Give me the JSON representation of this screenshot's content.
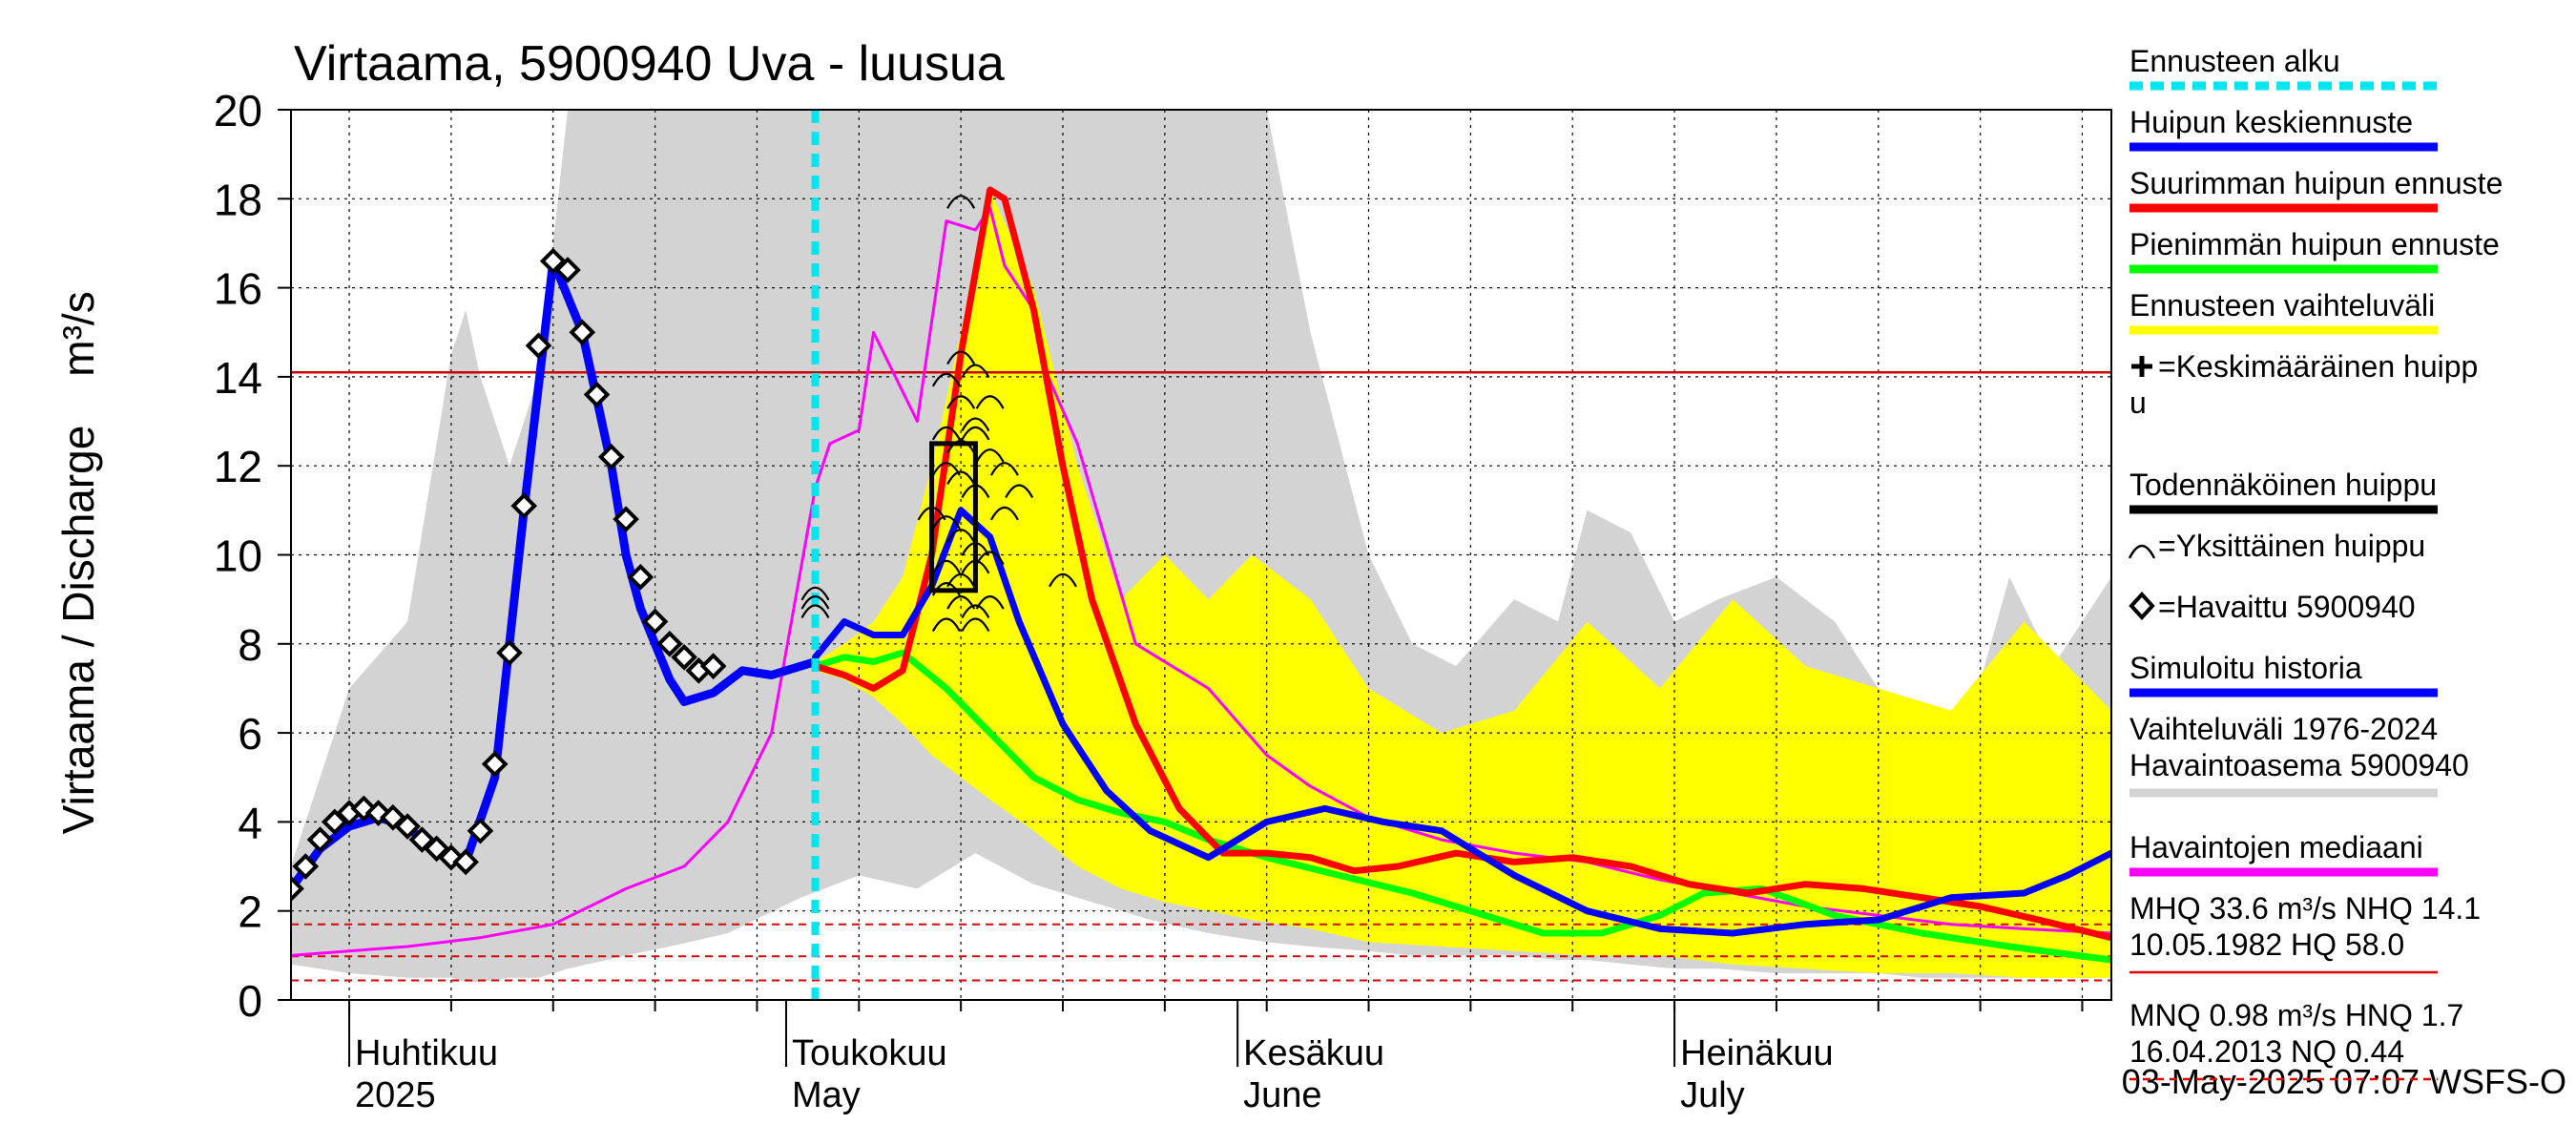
{
  "chart_data": {
    "type": "line",
    "title": "Virtaama, 5900940 Uva - luusua",
    "ylabel": "Virtaama / Discharge",
    "yunit": "m³/s",
    "ylim": [
      0,
      20
    ],
    "yticks": [
      0,
      2,
      4,
      6,
      8,
      10,
      12,
      14,
      16,
      18,
      20
    ],
    "xlim": [
      "2025-03-28",
      "2025-07-31"
    ],
    "grid": true,
    "forecast_start": "2025-05-03",
    "month_labels": [
      {
        "date": "2025-04-01",
        "fi": "Huhtikuu",
        "en": "2025"
      },
      {
        "date": "2025-05-01",
        "fi": "Toukokuu",
        "en": "May"
      },
      {
        "date": "2025-06-01",
        "fi": "Kesäkuu",
        "en": "June"
      },
      {
        "date": "2025-07-01",
        "fi": "Heinäkuu",
        "en": "July"
      }
    ],
    "timestamp": "03-May-2025 07:07 WSFS-O",
    "reference_lines": [
      {
        "value": 14.1,
        "color": "#cc0000",
        "style": "solid"
      },
      {
        "value": 1.7,
        "color": "#dd0000",
        "style": "dashed"
      },
      {
        "value": 0.98,
        "color": "#dd0000",
        "style": "dashed"
      },
      {
        "value": 0.44,
        "color": "#dd0000",
        "style": "dashed"
      }
    ],
    "hist_range": {
      "name": "Vaihteluväli 1976-2024 Havaintoasema 5900940",
      "color": "#d3d3d3",
      "x": [
        "2025-03-28",
        "2025-04-01",
        "2025-04-05",
        "2025-04-08",
        "2025-04-09",
        "2025-04-10",
        "2025-04-12",
        "2025-04-14",
        "2025-04-16",
        "2025-04-20",
        "2025-04-23",
        "2025-04-27",
        "2025-05-02",
        "2025-05-06",
        "2025-05-10",
        "2025-05-14",
        "2025-05-18",
        "2025-05-22",
        "2025-05-26",
        "2025-05-30",
        "2025-06-03",
        "2025-06-06",
        "2025-06-10",
        "2025-06-13",
        "2025-06-16",
        "2025-06-20",
        "2025-06-23",
        "2025-06-25",
        "2025-06-28",
        "2025-07-01",
        "2025-07-04",
        "2025-07-08",
        "2025-07-12",
        "2025-07-15",
        "2025-07-18",
        "2025-07-21",
        "2025-07-24",
        "2025-07-27",
        "2025-07-31"
      ],
      "upper": [
        3.0,
        7.0,
        8.5,
        14.5,
        15.5,
        14.0,
        12.0,
        14.0,
        20.0,
        20.0,
        20.0,
        20.0,
        20.0,
        20.0,
        20.0,
        20.0,
        20.0,
        20.0,
        20.0,
        20.0,
        20.0,
        15.0,
        10.0,
        8.0,
        7.5,
        9.0,
        8.5,
        11.0,
        10.5,
        8.5,
        9.0,
        9.5,
        8.5,
        7.0,
        6.5,
        6.0,
        9.5,
        7.5,
        9.5
      ],
      "lower": [
        0.8,
        0.6,
        0.5,
        0.5,
        0.4,
        0.4,
        0.5,
        0.5,
        0.7,
        1.0,
        1.2,
        1.5,
        2.3,
        2.8,
        2.5,
        3.3,
        2.6,
        2.2,
        1.8,
        1.5,
        1.3,
        1.2,
        1.1,
        1.0,
        1.0,
        1.0,
        0.9,
        0.9,
        0.8,
        0.7,
        0.7,
        0.6,
        0.6,
        0.6,
        0.5,
        0.5,
        0.5,
        0.5,
        0.5
      ]
    },
    "forecast_range": {
      "name": "Ennusteen vaihteluväli",
      "color": "#ffff00",
      "x": [
        "2025-05-03",
        "2025-05-05",
        "2025-05-07",
        "2025-05-09",
        "2025-05-11",
        "2025-05-13",
        "2025-05-15",
        "2025-05-18",
        "2025-05-21",
        "2025-05-24",
        "2025-05-27",
        "2025-05-30",
        "2025-06-02",
        "2025-06-06",
        "2025-06-10",
        "2025-06-15",
        "2025-06-20",
        "2025-06-25",
        "2025-06-30",
        "2025-07-05",
        "2025-07-10",
        "2025-07-15",
        "2025-07-20",
        "2025-07-25",
        "2025-07-31"
      ],
      "upper": [
        7.6,
        8.0,
        8.5,
        9.5,
        12.0,
        15.0,
        18.2,
        16.0,
        12.0,
        9.0,
        10.0,
        9.0,
        10.0,
        9.0,
        7.0,
        6.0,
        6.5,
        8.5,
        7.0,
        9.0,
        7.5,
        7.0,
        6.5,
        8.5,
        6.5
      ],
      "lower": [
        7.4,
        7.2,
        6.8,
        6.2,
        5.5,
        5.0,
        4.5,
        3.8,
        3.0,
        2.5,
        2.2,
        2.0,
        1.8,
        1.6,
        1.3,
        1.2,
        1.1,
        1.0,
        1.0,
        0.8,
        0.7,
        0.6,
        0.6,
        0.5,
        0.5
      ]
    },
    "series": [
      {
        "name": "Havaintojen mediaani",
        "color": "#ff00ff",
        "width": 3,
        "x": [
          "2025-03-28",
          "2025-04-05",
          "2025-04-10",
          "2025-04-15",
          "2025-04-20",
          "2025-04-24",
          "2025-04-27",
          "2025-04-30",
          "2025-05-03",
          "2025-05-04",
          "2025-05-06",
          "2025-05-07",
          "2025-05-10",
          "2025-05-12",
          "2025-05-14",
          "2025-05-15",
          "2025-05-16",
          "2025-05-18",
          "2025-05-19",
          "2025-05-21",
          "2025-05-25",
          "2025-05-30",
          "2025-06-03",
          "2025-06-06",
          "2025-06-10",
          "2025-06-15",
          "2025-06-20",
          "2025-06-25",
          "2025-06-30",
          "2025-07-05",
          "2025-07-10",
          "2025-07-15",
          "2025-07-20",
          "2025-07-25",
          "2025-07-31"
        ],
        "y": [
          1.0,
          1.2,
          1.4,
          1.7,
          2.5,
          3.0,
          4.0,
          6.0,
          11.5,
          12.5,
          12.8,
          15.0,
          13.0,
          17.5,
          17.3,
          17.8,
          16.5,
          15.5,
          14.0,
          12.5,
          8.0,
          7.0,
          5.5,
          4.8,
          4.1,
          3.6,
          3.3,
          3.1,
          2.7,
          2.4,
          2.1,
          1.9,
          1.7,
          1.6,
          1.5
        ]
      },
      {
        "name": "Pienimmän huipun ennuste",
        "color": "#00ff00",
        "width": 7,
        "x": [
          "2025-05-03",
          "2025-05-05",
          "2025-05-07",
          "2025-05-09",
          "2025-05-12",
          "2025-05-15",
          "2025-05-18",
          "2025-05-21",
          "2025-05-24",
          "2025-05-27",
          "2025-05-30",
          "2025-06-03",
          "2025-06-08",
          "2025-06-13",
          "2025-06-18",
          "2025-06-22",
          "2025-06-26",
          "2025-06-30",
          "2025-07-03",
          "2025-07-07",
          "2025-07-12",
          "2025-07-18",
          "2025-07-24",
          "2025-07-31"
        ],
        "y": [
          7.5,
          7.7,
          7.6,
          7.8,
          7.0,
          6.0,
          5.0,
          4.5,
          4.2,
          4.0,
          3.6,
          3.2,
          2.8,
          2.4,
          1.9,
          1.5,
          1.5,
          1.9,
          2.4,
          2.5,
          1.9,
          1.5,
          1.2,
          0.9
        ]
      },
      {
        "name": "Suurimman huipun ennuste",
        "color": "#ff0000",
        "width": 7,
        "x": [
          "2025-05-03",
          "2025-05-05",
          "2025-05-07",
          "2025-05-09",
          "2025-05-11",
          "2025-05-13",
          "2025-05-15",
          "2025-05-16",
          "2025-05-18",
          "2025-05-20",
          "2025-05-22",
          "2025-05-25",
          "2025-05-28",
          "2025-05-31",
          "2025-06-03",
          "2025-06-06",
          "2025-06-09",
          "2025-06-12",
          "2025-06-16",
          "2025-06-20",
          "2025-06-24",
          "2025-06-28",
          "2025-07-02",
          "2025-07-06",
          "2025-07-10",
          "2025-07-14",
          "2025-07-18",
          "2025-07-22",
          "2025-07-26",
          "2025-07-31"
        ],
        "y": [
          7.5,
          7.3,
          7.0,
          7.4,
          10.0,
          14.5,
          18.2,
          18.0,
          15.5,
          12.0,
          9.0,
          6.2,
          4.3,
          3.3,
          3.3,
          3.2,
          2.9,
          3.0,
          3.3,
          3.1,
          3.2,
          3.0,
          2.6,
          2.4,
          2.6,
          2.5,
          2.3,
          2.1,
          1.8,
          1.4
        ]
      },
      {
        "name": "Huipun keskiennuste",
        "color": "#0000ff",
        "width": 7,
        "x": [
          "2025-05-03",
          "2025-05-05",
          "2025-05-07",
          "2025-05-09",
          "2025-05-11",
          "2025-05-13",
          "2025-05-15",
          "2025-05-17",
          "2025-05-20",
          "2025-05-23",
          "2025-05-26",
          "2025-05-30",
          "2025-06-03",
          "2025-06-07",
          "2025-06-11",
          "2025-06-15",
          "2025-06-20",
          "2025-06-25",
          "2025-06-30",
          "2025-07-05",
          "2025-07-10",
          "2025-07-15",
          "2025-07-20",
          "2025-07-25",
          "2025-07-28",
          "2025-07-31"
        ],
        "y": [
          7.7,
          8.5,
          8.2,
          8.2,
          9.3,
          11.0,
          10.4,
          8.5,
          6.2,
          4.7,
          3.8,
          3.2,
          4.0,
          4.3,
          4.0,
          3.8,
          2.8,
          2.0,
          1.6,
          1.5,
          1.7,
          1.8,
          2.3,
          2.4,
          2.8,
          3.3
        ]
      },
      {
        "name": "Simuloitu historia",
        "color": "#0000ff",
        "width": 9,
        "x": [
          "2025-03-28",
          "2025-03-30",
          "2025-04-01",
          "2025-04-03",
          "2025-04-05",
          "2025-04-07",
          "2025-04-09",
          "2025-04-11",
          "2025-04-13",
          "2025-04-15",
          "2025-04-17",
          "2025-04-19",
          "2025-04-20",
          "2025-04-21",
          "2025-04-22",
          "2025-04-23",
          "2025-04-24",
          "2025-04-26",
          "2025-04-28",
          "2025-04-30",
          "2025-05-01",
          "2025-05-03"
        ],
        "y": [
          2.5,
          3.4,
          3.9,
          4.1,
          3.9,
          3.3,
          3.1,
          5.0,
          11.0,
          16.6,
          15.0,
          12.0,
          10.0,
          8.8,
          8.0,
          7.2,
          6.7,
          6.9,
          7.4,
          7.3,
          7.4,
          7.6
        ]
      }
    ],
    "observed": {
      "name": "Havaittu 5900940",
      "x": [
        "2025-03-28",
        "2025-03-29",
        "2025-03-30",
        "2025-03-31",
        "2025-04-01",
        "2025-04-02",
        "2025-04-03",
        "2025-04-04",
        "2025-04-05",
        "2025-04-06",
        "2025-04-07",
        "2025-04-08",
        "2025-04-09",
        "2025-04-10",
        "2025-04-11",
        "2025-04-12",
        "2025-04-13",
        "2025-04-14",
        "2025-04-15",
        "2025-04-16",
        "2025-04-17",
        "2025-04-18",
        "2025-04-19",
        "2025-04-20",
        "2025-04-21",
        "2025-04-22",
        "2025-04-23",
        "2025-04-24",
        "2025-04-25",
        "2025-04-26"
      ],
      "y": [
        2.5,
        3.0,
        3.6,
        4.0,
        4.2,
        4.3,
        4.2,
        4.1,
        3.9,
        3.6,
        3.4,
        3.2,
        3.1,
        3.8,
        5.3,
        7.8,
        11.1,
        14.7,
        16.6,
        16.4,
        15.0,
        13.6,
        12.2,
        10.8,
        9.5,
        8.5,
        8.0,
        7.7,
        7.4,
        7.5
      ]
    },
    "individual_peaks": {
      "name": "Yksittäinen huippu",
      "x": [
        "2025-05-03",
        "2025-05-03",
        "2025-05-03",
        "2025-05-13",
        "2025-05-13",
        "2025-05-12",
        "2025-05-14",
        "2025-05-13",
        "2025-05-14",
        "2025-05-15",
        "2025-05-12",
        "2025-05-13",
        "2025-05-14",
        "2025-05-15",
        "2025-05-16",
        "2025-05-12",
        "2025-05-13",
        "2025-05-14",
        "2025-05-16",
        "2025-05-17",
        "2025-05-11",
        "2025-05-12",
        "2025-05-13",
        "2025-05-14",
        "2025-05-15",
        "2025-05-12",
        "2025-05-13",
        "2025-05-14",
        "2025-05-12",
        "2025-05-13",
        "2025-05-14",
        "2025-05-15",
        "2025-05-12",
        "2025-05-14",
        "2025-05-20"
      ],
      "y": [
        9.2,
        9.0,
        8.8,
        18.0,
        14.5,
        14.0,
        14.2,
        13.5,
        13.0,
        13.5,
        12.8,
        12.5,
        12.8,
        12.3,
        12.0,
        12.0,
        11.8,
        11.5,
        11.0,
        11.5,
        11.0,
        10.8,
        10.5,
        10.2,
        10.0,
        9.8,
        9.5,
        9.8,
        9.3,
        9.0,
        8.8,
        9.0,
        8.5,
        8.5,
        9.5
      ]
    },
    "probable_peak": {
      "name": "Todennäköinen huippu",
      "x0": "2025-05-11",
      "x1": "2025-05-14",
      "y0": 9.2,
      "y1": 12.5
    },
    "legend": {
      "placement": "right",
      "items": [
        {
          "label": "Ennusteen alku",
          "color": "#00e5ee",
          "kind": "dash"
        },
        {
          "label": "Huipun keskiennuste",
          "color": "#0000ff",
          "kind": "line"
        },
        {
          "label": "Suurimman huipun ennuste",
          "color": "#ff0000",
          "kind": "line"
        },
        {
          "label": "Pienimmän huipun ennuste",
          "color": "#00ff00",
          "kind": "line"
        },
        {
          "label": "Ennusteen vaihteluväli",
          "color": "#ffff00",
          "kind": "line"
        },
        {
          "label": "=Keskimääräinen huipp",
          "label2": "u",
          "color": "#000000",
          "kind": "plus"
        },
        {
          "label": "Todennäköinen huippu",
          "color": "#000000",
          "kind": "line"
        },
        {
          "label": "=Yksittäinen huippu",
          "color": "#000000",
          "kind": "arc"
        },
        {
          "label": "=Havaittu 5900940",
          "color": "#000000",
          "kind": "diamond"
        },
        {
          "label": "Simuloitu historia",
          "color": "#0000ff",
          "kind": "line"
        },
        {
          "label": "Vaihteluväli 1976-2024",
          "label2": " Havaintoasema 5900940",
          "color": "#d3d3d3",
          "kind": "line"
        },
        {
          "label": "Havaintojen mediaani",
          "color": "#ff00ff",
          "kind": "line"
        },
        {
          "label": "MHQ 33.6 m³/s NHQ 14.1",
          "label2": "10.05.1982 HQ 58.0",
          "color": "#dd0000",
          "kind": "thin"
        },
        {
          "label": "MNQ 0.98 m³/s HNQ  1.7",
          "label2": "16.04.2013 NQ 0.44",
          "color": "#dd0000",
          "kind": "thindash"
        }
      ]
    }
  }
}
